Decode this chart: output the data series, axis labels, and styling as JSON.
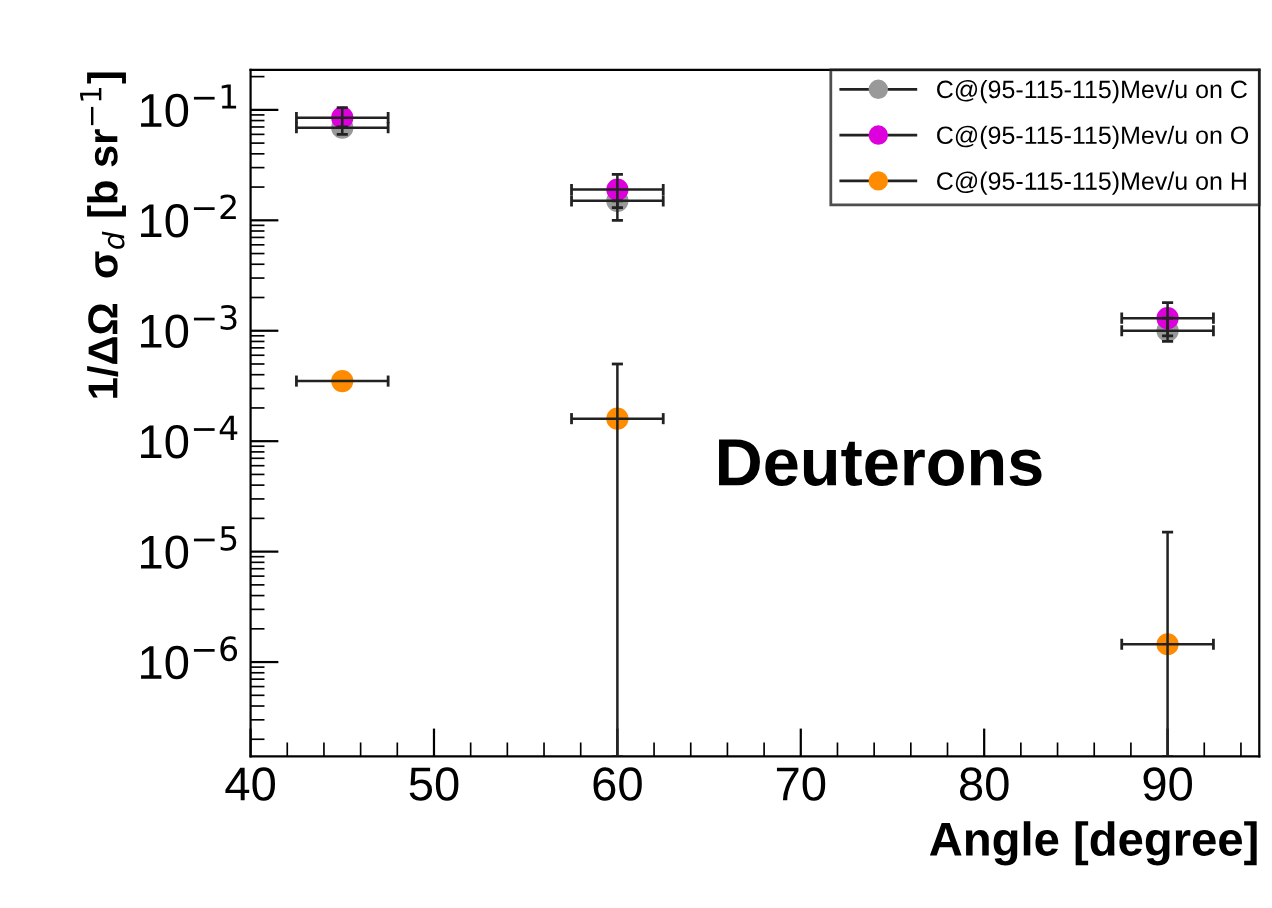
{
  "chart_data": {
    "type": "scatter",
    "xlabel": "Angle [degree]",
    "ylabel": "1/ΔΩ  σ$_{d}$ [b sr$^{−1}$]",
    "annotations": [
      "Deuterons"
    ],
    "x": [
      45,
      60,
      90
    ],
    "xlim": [
      40,
      95
    ],
    "xticks": [
      40,
      50,
      60,
      70,
      80,
      90
    ],
    "log": "y",
    "ylim": [
      1.4e-07,
      0.23
    ],
    "yticks": [
      {
        "value": 1e-06,
        "label": "10$^{−6}$"
      },
      {
        "value": 1e-05,
        "label": "10$^{−5}$"
      },
      {
        "value": 0.0001,
        "label": "10$^{−4}$"
      },
      {
        "value": 0.001,
        "label": "10$^{−3}$"
      },
      {
        "value": 0.01,
        "label": "10$^{−2}$"
      },
      {
        "value": 0.1,
        "label": "10$^{−1}$"
      }
    ],
    "marker": "circle",
    "grid": false,
    "legend": "top right",
    "series": [
      {
        "name": "C@(95-115-115)Mev/u on C",
        "color": "#999999",
        "values": [
          0.069,
          0.015,
          0.001
        ],
        "errors": [
          [
            0.06,
            0.069
          ],
          [
            0.01,
            0.015
          ],
          [
            0.0008,
            0.0013
          ]
        ],
        "xerrors": [
          2.5,
          2.5,
          2.5
        ]
      },
      {
        "name": "C@(95-115-115)Mev/u on O",
        "color": "#dd00dd",
        "values": [
          0.085,
          0.019,
          0.0013
        ],
        "errors": [
          [
            0.07,
            0.105
          ],
          [
            0.013,
            0.026
          ],
          [
            0.0009,
            0.0018
          ]
        ],
        "xerrors": [
          2.5,
          2.5,
          2.5
        ]
      },
      {
        "name": "C@(95-115-115)Mev/u on H",
        "color": "#ff8c00",
        "values": [
          0.00035,
          0.00016,
          1.45e-06
        ],
        "errors": [
          null,
          [
            1.4e-07,
            0.0005
          ],
          [
            1.4e-07,
            1.5e-05
          ]
        ],
        "xerrors": [
          2.5,
          2.5,
          2.5
        ]
      }
    ]
  }
}
